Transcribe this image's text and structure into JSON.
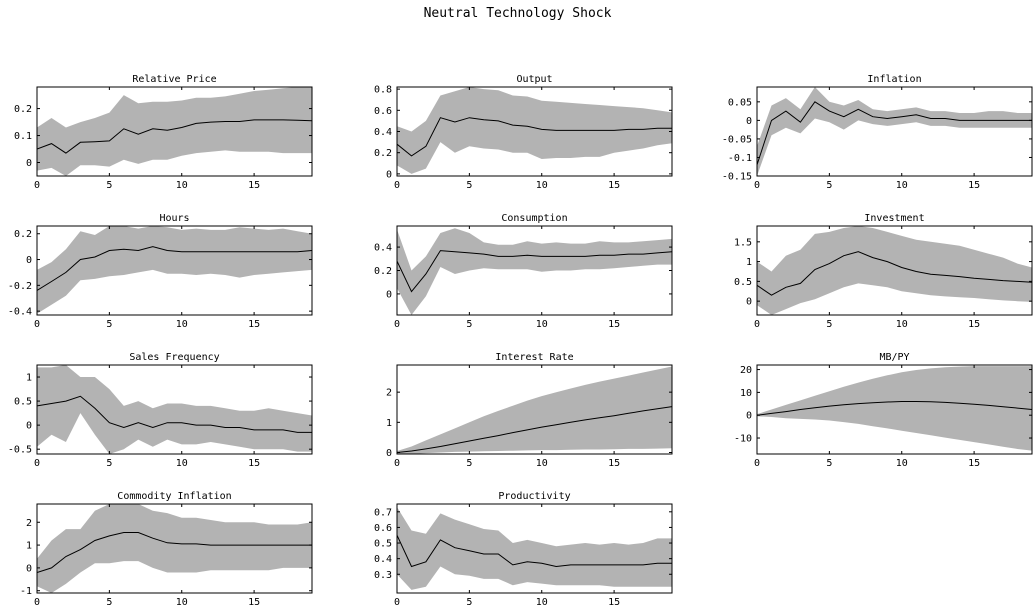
{
  "figure": {
    "title": "Neutral Technology Shock"
  },
  "chart_data": [
    {
      "type": "line",
      "title": "Relative Price",
      "x": [
        0,
        1,
        2,
        3,
        4,
        5,
        6,
        7,
        8,
        9,
        10,
        11,
        12,
        13,
        14,
        15,
        16,
        17,
        18,
        19
      ],
      "series": [
        {
          "values": [
            0.05,
            0.07,
            0.035,
            0.075,
            0.077,
            0.08,
            0.125,
            0.105,
            0.125,
            0.12,
            0.13,
            0.145,
            0.15,
            0.152,
            0.152,
            0.158,
            0.158,
            0.158,
            0.157,
            0.155
          ]
        }
      ],
      "band_upper": [
        0.13,
        0.165,
        0.13,
        0.15,
        0.165,
        0.185,
        0.25,
        0.22,
        0.225,
        0.225,
        0.23,
        0.24,
        0.24,
        0.245,
        0.255,
        0.265,
        0.27,
        0.275,
        0.28,
        0.285
      ],
      "band_lower": [
        -0.03,
        -0.02,
        -0.05,
        -0.01,
        -0.01,
        -0.015,
        0.01,
        -0.005,
        0.01,
        0.01,
        0.025,
        0.035,
        0.04,
        0.045,
        0.04,
        0.04,
        0.04,
        0.035,
        0.035,
        0.035
      ],
      "xlim": [
        0,
        19
      ],
      "ylim": [
        -0.05,
        0.28
      ],
      "xticks": [
        0,
        5,
        10,
        15
      ],
      "yticks": [
        0,
        0.1,
        0.2
      ],
      "ytick_labels": [
        "0",
        "0.1",
        "0.2"
      ]
    },
    {
      "type": "line",
      "title": "Output",
      "x": [
        0,
        1,
        2,
        3,
        4,
        5,
        6,
        7,
        8,
        9,
        10,
        11,
        12,
        13,
        14,
        15,
        16,
        17,
        18,
        19
      ],
      "series": [
        {
          "values": [
            0.28,
            0.17,
            0.26,
            0.53,
            0.49,
            0.53,
            0.51,
            0.5,
            0.46,
            0.45,
            0.42,
            0.41,
            0.41,
            0.41,
            0.41,
            0.41,
            0.42,
            0.42,
            0.43,
            0.43
          ]
        }
      ],
      "band_upper": [
        0.45,
        0.4,
        0.5,
        0.74,
        0.78,
        0.82,
        0.8,
        0.79,
        0.74,
        0.73,
        0.69,
        0.68,
        0.67,
        0.66,
        0.65,
        0.64,
        0.63,
        0.62,
        0.6,
        0.58
      ],
      "band_lower": [
        0.08,
        0.0,
        0.05,
        0.3,
        0.2,
        0.26,
        0.24,
        0.23,
        0.2,
        0.2,
        0.14,
        0.15,
        0.15,
        0.16,
        0.16,
        0.2,
        0.22,
        0.24,
        0.27,
        0.29
      ],
      "xlim": [
        0,
        19
      ],
      "ylim": [
        -0.02,
        0.82
      ],
      "xticks": [
        0,
        5,
        10,
        15
      ],
      "yticks": [
        0,
        0.2,
        0.4,
        0.6,
        0.8
      ],
      "ytick_labels": [
        "0",
        "0.2",
        "0.4",
        "0.6",
        "0.8"
      ]
    },
    {
      "type": "line",
      "title": "Inflation",
      "x": [
        0,
        1,
        2,
        3,
        4,
        5,
        6,
        7,
        8,
        9,
        10,
        11,
        12,
        13,
        14,
        15,
        16,
        17,
        18,
        19
      ],
      "series": [
        {
          "values": [
            -0.12,
            0.0,
            0.025,
            -0.005,
            0.05,
            0.025,
            0.01,
            0.03,
            0.01,
            0.005,
            0.01,
            0.015,
            0.005,
            0.005,
            0.0,
            0.0,
            0.0,
            0.0,
            0.0,
            0.0
          ]
        }
      ],
      "band_upper": [
        -0.07,
        0.04,
        0.06,
        0.03,
        0.09,
        0.05,
        0.04,
        0.055,
        0.03,
        0.025,
        0.03,
        0.035,
        0.025,
        0.025,
        0.02,
        0.02,
        0.025,
        0.025,
        0.02,
        0.02
      ],
      "band_lower": [
        -0.16,
        -0.04,
        -0.02,
        -0.035,
        0.005,
        -0.005,
        -0.025,
        0.0,
        -0.01,
        -0.015,
        -0.01,
        -0.005,
        -0.015,
        -0.015,
        -0.02,
        -0.02,
        -0.02,
        -0.02,
        -0.02,
        -0.02
      ],
      "xlim": [
        0,
        19
      ],
      "ylim": [
        -0.15,
        0.09
      ],
      "xticks": [
        0,
        5,
        10,
        15
      ],
      "yticks": [
        -0.15,
        -0.1,
        -0.05,
        0,
        0.05
      ],
      "ytick_labels": [
        "-0.15",
        "-0.1",
        "-0.05",
        "0",
        "0.05"
      ]
    },
    {
      "type": "line",
      "title": "Hours",
      "x": [
        0,
        1,
        2,
        3,
        4,
        5,
        6,
        7,
        8,
        9,
        10,
        11,
        12,
        13,
        14,
        15,
        16,
        17,
        18,
        19
      ],
      "series": [
        {
          "values": [
            -0.24,
            -0.17,
            -0.1,
            0.0,
            0.02,
            0.07,
            0.08,
            0.07,
            0.1,
            0.07,
            0.06,
            0.06,
            0.06,
            0.06,
            0.06,
            0.06,
            0.06,
            0.06,
            0.06,
            0.07
          ]
        }
      ],
      "band_upper": [
        -0.08,
        -0.02,
        0.08,
        0.22,
        0.19,
        0.26,
        0.27,
        0.24,
        0.26,
        0.25,
        0.23,
        0.24,
        0.23,
        0.23,
        0.25,
        0.24,
        0.23,
        0.24,
        0.22,
        0.2
      ],
      "band_lower": [
        -0.42,
        -0.35,
        -0.28,
        -0.16,
        -0.15,
        -0.13,
        -0.12,
        -0.1,
        -0.08,
        -0.11,
        -0.11,
        -0.12,
        -0.11,
        -0.12,
        -0.14,
        -0.12,
        -0.11,
        -0.1,
        -0.09,
        -0.08
      ],
      "xlim": [
        0,
        19
      ],
      "ylim": [
        -0.43,
        0.26
      ],
      "xticks": [
        0,
        5,
        10,
        15
      ],
      "yticks": [
        -0.4,
        -0.2,
        0,
        0.2
      ],
      "ytick_labels": [
        "-0.4",
        "-0.2",
        "0",
        "0.2"
      ]
    },
    {
      "type": "line",
      "title": "Consumption",
      "x": [
        0,
        1,
        2,
        3,
        4,
        5,
        6,
        7,
        8,
        9,
        10,
        11,
        12,
        13,
        14,
        15,
        16,
        17,
        18,
        19
      ],
      "series": [
        {
          "values": [
            0.28,
            0.02,
            0.17,
            0.37,
            0.36,
            0.35,
            0.34,
            0.32,
            0.32,
            0.33,
            0.32,
            0.32,
            0.32,
            0.32,
            0.33,
            0.33,
            0.34,
            0.34,
            0.35,
            0.36
          ]
        }
      ],
      "band_upper": [
        0.55,
        0.2,
        0.32,
        0.52,
        0.56,
        0.52,
        0.44,
        0.42,
        0.42,
        0.45,
        0.43,
        0.44,
        0.43,
        0.43,
        0.45,
        0.44,
        0.44,
        0.45,
        0.46,
        0.47
      ],
      "band_lower": [
        0.05,
        -0.18,
        -0.02,
        0.23,
        0.17,
        0.2,
        0.22,
        0.21,
        0.21,
        0.21,
        0.19,
        0.2,
        0.2,
        0.21,
        0.21,
        0.22,
        0.23,
        0.24,
        0.25,
        0.25
      ],
      "xlim": [
        0,
        19
      ],
      "ylim": [
        -0.18,
        0.58
      ],
      "xticks": [
        0,
        5,
        10,
        15
      ],
      "yticks": [
        0,
        0.2,
        0.4
      ],
      "ytick_labels": [
        "0",
        "0.2",
        "0.4"
      ]
    },
    {
      "type": "line",
      "title": "Investment",
      "x": [
        0,
        1,
        2,
        3,
        4,
        5,
        6,
        7,
        8,
        9,
        10,
        11,
        12,
        13,
        14,
        15,
        16,
        17,
        18,
        19
      ],
      "series": [
        {
          "values": [
            0.4,
            0.15,
            0.35,
            0.45,
            0.8,
            0.95,
            1.15,
            1.25,
            1.1,
            1.0,
            0.85,
            0.75,
            0.68,
            0.65,
            0.62,
            0.58,
            0.55,
            0.52,
            0.5,
            0.48
          ]
        }
      ],
      "band_upper": [
        1.0,
        0.75,
        1.15,
        1.3,
        1.7,
        1.75,
        1.85,
        2.0,
        1.85,
        1.75,
        1.65,
        1.55,
        1.5,
        1.45,
        1.4,
        1.3,
        1.2,
        1.1,
        0.95,
        0.85
      ],
      "band_lower": [
        -0.1,
        -0.35,
        -0.2,
        -0.05,
        0.05,
        0.2,
        0.35,
        0.45,
        0.4,
        0.35,
        0.25,
        0.2,
        0.15,
        0.12,
        0.1,
        0.08,
        0.05,
        0.02,
        0.0,
        -0.02
      ],
      "xlim": [
        0,
        19
      ],
      "ylim": [
        -0.35,
        1.9
      ],
      "xticks": [
        0,
        5,
        10,
        15
      ],
      "yticks": [
        0,
        0.5,
        1,
        1.5
      ],
      "ytick_labels": [
        "0",
        "0.5",
        "1",
        "1.5"
      ]
    },
    {
      "type": "line",
      "title": "Sales Frequency",
      "x": [
        0,
        1,
        2,
        3,
        4,
        5,
        6,
        7,
        8,
        9,
        10,
        11,
        12,
        13,
        14,
        15,
        16,
        17,
        18,
        19
      ],
      "series": [
        {
          "values": [
            0.4,
            0.45,
            0.5,
            0.6,
            0.35,
            0.05,
            -0.05,
            0.05,
            -0.05,
            0.05,
            0.05,
            0.0,
            0.0,
            -0.05,
            -0.05,
            -0.1,
            -0.1,
            -0.1,
            -0.15,
            -0.15
          ]
        }
      ],
      "band_upper": [
        1.2,
        1.2,
        1.3,
        1.0,
        1.0,
        0.75,
        0.4,
        0.5,
        0.35,
        0.45,
        0.45,
        0.4,
        0.4,
        0.35,
        0.3,
        0.3,
        0.35,
        0.3,
        0.25,
        0.2
      ],
      "band_lower": [
        -0.45,
        -0.2,
        -0.35,
        0.25,
        -0.2,
        -0.6,
        -0.5,
        -0.3,
        -0.45,
        -0.3,
        -0.4,
        -0.4,
        -0.35,
        -0.4,
        -0.45,
        -0.5,
        -0.5,
        -0.5,
        -0.55,
        -0.55
      ],
      "xlim": [
        0,
        19
      ],
      "ylim": [
        -0.6,
        1.25
      ],
      "xticks": [
        0,
        5,
        10,
        15
      ],
      "yticks": [
        -0.5,
        0,
        0.5,
        1
      ],
      "ytick_labels": [
        "-0.5",
        "0",
        "0.5",
        "1"
      ]
    },
    {
      "type": "line",
      "title": "Interest Rate",
      "x": [
        0,
        1,
        2,
        3,
        4,
        5,
        6,
        7,
        8,
        9,
        10,
        11,
        12,
        13,
        14,
        15,
        16,
        17,
        18,
        19
      ],
      "series": [
        {
          "values": [
            0.0,
            0.05,
            0.12,
            0.2,
            0.29,
            0.38,
            0.47,
            0.56,
            0.66,
            0.75,
            0.84,
            0.92,
            1.0,
            1.08,
            1.15,
            1.22,
            1.3,
            1.38,
            1.45,
            1.52
          ]
        }
      ],
      "band_upper": [
        0.05,
        0.2,
        0.4,
        0.6,
        0.8,
        1.0,
        1.2,
        1.38,
        1.55,
        1.72,
        1.87,
        2.0,
        2.12,
        2.24,
        2.35,
        2.45,
        2.55,
        2.65,
        2.75,
        2.85
      ],
      "band_lower": [
        -0.05,
        -0.05,
        -0.02,
        0.0,
        0.02,
        0.03,
        0.04,
        0.05,
        0.06,
        0.07,
        0.08,
        0.08,
        0.09,
        0.1,
        0.1,
        0.11,
        0.12,
        0.12,
        0.13,
        0.14
      ],
      "xlim": [
        0,
        19
      ],
      "ylim": [
        -0.05,
        2.9
      ],
      "xticks": [
        0,
        5,
        10,
        15
      ],
      "yticks": [
        0,
        1,
        2
      ],
      "ytick_labels": [
        "0",
        "1",
        "2"
      ]
    },
    {
      "type": "line",
      "title": "MB/PY",
      "x": [
        0,
        1,
        2,
        3,
        4,
        5,
        6,
        7,
        8,
        9,
        10,
        11,
        12,
        13,
        14,
        15,
        16,
        17,
        18,
        19
      ],
      "series": [
        {
          "values": [
            0.0,
            0.8,
            1.6,
            2.5,
            3.3,
            4.0,
            4.6,
            5.1,
            5.5,
            5.8,
            6.0,
            6.0,
            5.9,
            5.6,
            5.2,
            4.8,
            4.3,
            3.7,
            3.1,
            2.5
          ]
        }
      ],
      "band_upper": [
        0.5,
        2.5,
        4.5,
        6.5,
        8.5,
        10.5,
        12.5,
        14.3,
        16.0,
        17.5,
        18.8,
        19.8,
        20.5,
        21.0,
        21.3,
        21.5,
        21.5,
        21.5,
        21.5,
        21.5
      ],
      "band_lower": [
        -0.5,
        -0.8,
        -1.3,
        -1.6,
        -1.9,
        -2.3,
        -3.0,
        -3.8,
        -4.8,
        -5.8,
        -6.8,
        -7.8,
        -8.8,
        -9.8,
        -10.8,
        -11.8,
        -12.8,
        -13.8,
        -14.8,
        -15.5
      ],
      "xlim": [
        0,
        19
      ],
      "ylim": [
        -17,
        22
      ],
      "xticks": [
        0,
        5,
        10,
        15
      ],
      "yticks": [
        -10,
        0,
        10,
        20
      ],
      "ytick_labels": [
        "-10",
        "0",
        "10",
        "20"
      ]
    },
    {
      "type": "line",
      "title": "Commodity Inflation",
      "x": [
        0,
        1,
        2,
        3,
        4,
        5,
        6,
        7,
        8,
        9,
        10,
        11,
        12,
        13,
        14,
        15,
        16,
        17,
        18,
        19
      ],
      "series": [
        {
          "values": [
            -0.2,
            0.0,
            0.5,
            0.8,
            1.2,
            1.4,
            1.55,
            1.55,
            1.3,
            1.1,
            1.05,
            1.05,
            1.0,
            1.0,
            1.0,
            1.0,
            1.0,
            1.0,
            1.0,
            1.0
          ]
        }
      ],
      "band_upper": [
        0.4,
        1.2,
        1.7,
        1.7,
        2.5,
        2.8,
        3.0,
        2.9,
        2.5,
        2.4,
        2.2,
        2.2,
        2.1,
        2.0,
        2.0,
        2.0,
        1.9,
        1.9,
        1.9,
        2.0
      ],
      "band_lower": [
        -0.8,
        -1.1,
        -0.7,
        -0.2,
        0.2,
        0.2,
        0.3,
        0.3,
        0.0,
        -0.2,
        -0.2,
        -0.2,
        -0.1,
        -0.1,
        -0.1,
        -0.1,
        -0.1,
        0.0,
        0.0,
        0.0
      ],
      "xlim": [
        0,
        19
      ],
      "ylim": [
        -1.1,
        2.8
      ],
      "xticks": [
        0,
        5,
        10,
        15
      ],
      "yticks": [
        -1,
        0,
        1,
        2
      ],
      "ytick_labels": [
        "-1",
        "0",
        "1",
        "2"
      ]
    },
    {
      "type": "line",
      "title": "Productivity",
      "x": [
        0,
        1,
        2,
        3,
        4,
        5,
        6,
        7,
        8,
        9,
        10,
        11,
        12,
        13,
        14,
        15,
        16,
        17,
        18,
        19
      ],
      "series": [
        {
          "values": [
            0.55,
            0.35,
            0.38,
            0.52,
            0.47,
            0.45,
            0.43,
            0.43,
            0.36,
            0.38,
            0.37,
            0.35,
            0.36,
            0.36,
            0.36,
            0.36,
            0.36,
            0.36,
            0.37,
            0.37
          ]
        }
      ],
      "band_upper": [
        0.73,
        0.58,
        0.56,
        0.69,
        0.65,
        0.62,
        0.59,
        0.58,
        0.5,
        0.52,
        0.5,
        0.48,
        0.49,
        0.5,
        0.49,
        0.5,
        0.49,
        0.5,
        0.53,
        0.53
      ],
      "band_lower": [
        0.3,
        0.2,
        0.22,
        0.35,
        0.3,
        0.29,
        0.27,
        0.27,
        0.23,
        0.25,
        0.24,
        0.23,
        0.23,
        0.23,
        0.23,
        0.22,
        0.22,
        0.22,
        0.22,
        0.22
      ],
      "xlim": [
        0,
        19
      ],
      "ylim": [
        0.18,
        0.75
      ],
      "xticks": [
        0,
        5,
        10,
        15
      ],
      "yticks": [
        0.3,
        0.4,
        0.5,
        0.6,
        0.7
      ],
      "ytick_labels": [
        "0.3",
        "0.4",
        "0.5",
        "0.6",
        "0.7"
      ]
    }
  ],
  "colors": {
    "band": "#b3b3b3",
    "line": "#000000",
    "axes": "#000000"
  }
}
